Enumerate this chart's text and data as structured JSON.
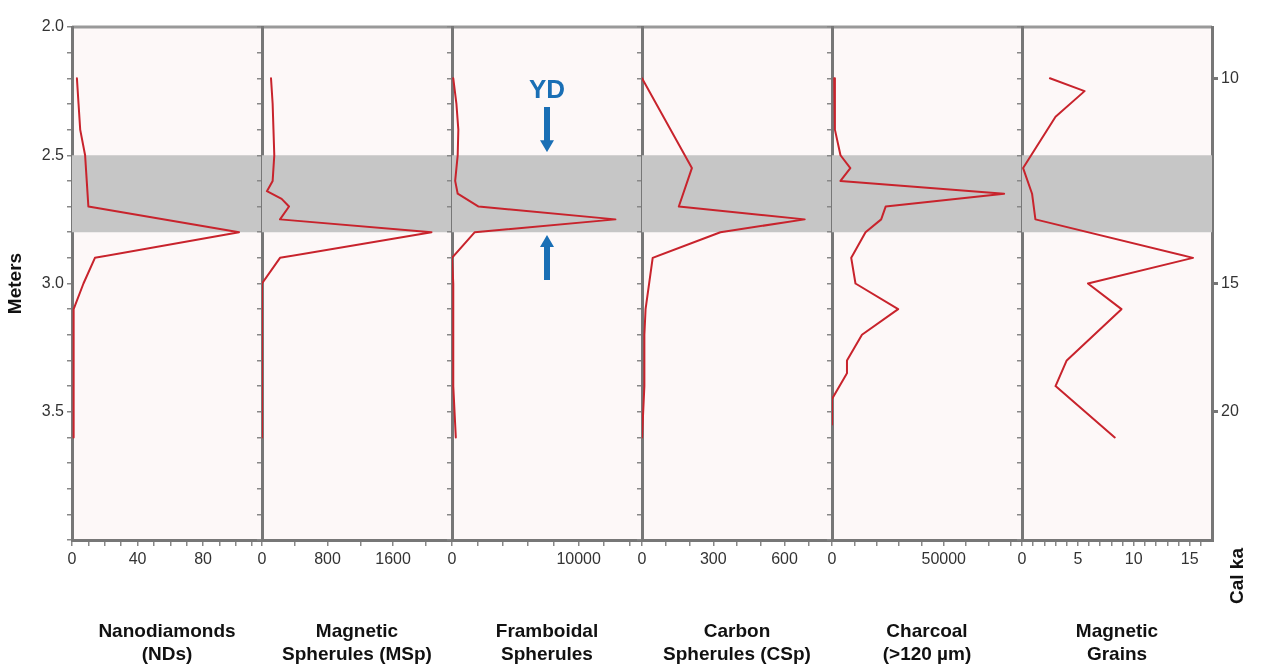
{
  "chart_data": [
    {
      "type": "line",
      "orientation": "horizontal",
      "xlabel": "Nanodiamonds (NDs)",
      "ylabel": "Meters",
      "x": [
        2.2,
        2.3,
        2.4,
        2.5,
        2.6,
        2.7,
        2.8,
        2.9,
        3.0,
        3.1,
        3.2,
        3.3,
        3.4,
        3.5,
        3.6
      ],
      "series": [
        {
          "color": "#c8232c",
          "values": [
            3,
            4,
            5,
            8,
            9,
            10,
            102,
            14,
            7,
            1,
            1,
            1,
            1,
            1,
            1
          ]
        }
      ],
      "xlim": [
        0,
        116
      ],
      "xticks": [
        0,
        {
          "value": 10,
          "label": null
        },
        {
          "value": 20,
          "label": null
        },
        {
          "value": 30,
          "label": null
        },
        40,
        {
          "value": 50,
          "label": null
        },
        {
          "value": 60,
          "label": null
        },
        {
          "value": 70,
          "label": null
        },
        80,
        {
          "value": 90,
          "label": null
        },
        {
          "value": 100,
          "label": null
        },
        {
          "value": 110,
          "label": null
        }
      ],
      "ylim": [
        4.0,
        2.0
      ],
      "yticks": [
        {
          "value": 2.0,
          "label": "2.0"
        },
        {
          "value": 2.1,
          "label": null
        },
        {
          "value": 2.2,
          "label": null
        },
        {
          "value": 2.3,
          "label": null
        },
        {
          "value": 2.4,
          "label": null
        },
        2.5,
        {
          "value": 2.6,
          "label": null
        },
        {
          "value": 2.7,
          "label": null
        },
        {
          "value": 2.8,
          "label": null
        },
        {
          "value": 2.9,
          "label": null
        },
        {
          "value": 3.0,
          "label": "3.0"
        },
        {
          "value": 3.1,
          "label": null
        },
        {
          "value": 3.2,
          "label": null
        },
        {
          "value": 3.3,
          "label": null
        },
        {
          "value": 3.4,
          "label": null
        },
        3.5,
        {
          "value": 3.6,
          "label": null
        },
        {
          "value": 3.7,
          "label": null
        },
        {
          "value": 3.8,
          "label": null
        },
        {
          "value": 3.9,
          "label": null
        },
        {
          "value": 4.0,
          "label": null
        }
      ],
      "bands": [
        {
          "axis": "y",
          "from": 2.5,
          "to": 2.8,
          "color": "#c6c6c6"
        }
      ]
    },
    {
      "type": "line",
      "orientation": "horizontal",
      "xlabel": "Magnetic Spherules (MSp)",
      "tick_labels": "x",
      "x": [
        2.2,
        2.3,
        2.4,
        2.5,
        2.6,
        2.64,
        2.67,
        2.7,
        2.75,
        2.8,
        2.9,
        3.0,
        3.1,
        3.2,
        3.3,
        3.4,
        3.5,
        3.6
      ],
      "series": [
        {
          "color": "#c8232c",
          "values": [
            110,
            130,
            140,
            150,
            130,
            60,
            240,
            330,
            220,
            2070,
            220,
            0,
            0,
            0,
            0,
            0,
            0,
            0
          ]
        }
      ],
      "xlim": [
        0,
        2320
      ],
      "xticks": [
        0,
        {
          "value": 400,
          "label": null
        },
        800,
        {
          "value": 1200,
          "label": null
        },
        1600,
        {
          "value": 2000,
          "label": null
        }
      ],
      "ylim": [
        4.0,
        2.0
      ],
      "yticks": [
        {
          "value": 2.0,
          "label": null
        },
        {
          "value": 2.1,
          "label": null
        },
        {
          "value": 2.2,
          "label": null
        },
        {
          "value": 2.3,
          "label": null
        },
        {
          "value": 2.4,
          "label": null
        },
        {
          "value": 2.5,
          "label": null
        },
        {
          "value": 2.6,
          "label": null
        },
        {
          "value": 2.7,
          "label": null
        },
        {
          "value": 2.8,
          "label": null
        },
        {
          "value": 2.9,
          "label": null
        },
        {
          "value": 3.0,
          "label": null
        },
        {
          "value": 3.1,
          "label": null
        },
        {
          "value": 3.2,
          "label": null
        },
        {
          "value": 3.3,
          "label": null
        },
        {
          "value": 3.4,
          "label": null
        },
        {
          "value": 3.5,
          "label": null
        },
        {
          "value": 3.6,
          "label": null
        },
        {
          "value": 3.7,
          "label": null
        },
        {
          "value": 3.8,
          "label": null
        },
        {
          "value": 3.9,
          "label": null
        },
        {
          "value": 4.0,
          "label": null
        }
      ],
      "bands": [
        {
          "axis": "y",
          "from": 2.5,
          "to": 2.8,
          "color": "#c6c6c6"
        }
      ]
    },
    {
      "type": "line",
      "orientation": "horizontal",
      "xlabel": "Framboidal Spherules",
      "tick_labels": "x",
      "x": [
        2.2,
        2.3,
        2.4,
        2.5,
        2.6,
        2.65,
        2.7,
        2.75,
        2.8,
        2.9,
        3.0,
        3.1,
        3.2,
        3.3,
        3.4,
        3.5,
        3.6
      ],
      "series": [
        {
          "color": "#c8232c",
          "values": [
            100,
            350,
            500,
            450,
            250,
            450,
            2100,
            12900,
            1800,
            0,
            100,
            100,
            100,
            100,
            100,
            200,
            300
          ]
        }
      ],
      "xlim": [
        0,
        15000
      ],
      "xticks": [
        0,
        {
          "value": 2000,
          "label": null
        },
        {
          "value": 4000,
          "label": null
        },
        {
          "value": 6000,
          "label": null
        },
        {
          "value": 8000,
          "label": null
        },
        10000,
        {
          "value": 12000,
          "label": null
        },
        {
          "value": 14000,
          "label": null
        }
      ],
      "ylim": [
        4.0,
        2.0
      ],
      "yticks": [
        {
          "value": 2.0,
          "label": null
        },
        {
          "value": 2.1,
          "label": null
        },
        {
          "value": 2.2,
          "label": null
        },
        {
          "value": 2.3,
          "label": null
        },
        {
          "value": 2.4,
          "label": null
        },
        {
          "value": 2.5,
          "label": null
        },
        {
          "value": 2.6,
          "label": null
        },
        {
          "value": 2.7,
          "label": null
        },
        {
          "value": 2.8,
          "label": null
        },
        {
          "value": 2.9,
          "label": null
        },
        {
          "value": 3.0,
          "label": null
        },
        {
          "value": 3.1,
          "label": null
        },
        {
          "value": 3.2,
          "label": null
        },
        {
          "value": 3.3,
          "label": null
        },
        {
          "value": 3.4,
          "label": null
        },
        {
          "value": 3.5,
          "label": null
        },
        {
          "value": 3.6,
          "label": null
        },
        {
          "value": 3.7,
          "label": null
        },
        {
          "value": 3.8,
          "label": null
        },
        {
          "value": 3.9,
          "label": null
        },
        {
          "value": 4.0,
          "label": null
        }
      ],
      "bands": [
        {
          "axis": "y",
          "from": 2.5,
          "to": 2.8,
          "color": "#c6c6c6"
        }
      ],
      "annotations": [
        "YD"
      ]
    },
    {
      "type": "line",
      "orientation": "horizontal",
      "xlabel": "Carbon Spherules (CSp)",
      "tick_labels": "x",
      "x": [
        2.2,
        2.55,
        2.7,
        2.75,
        2.8,
        2.9,
        3.1,
        3.2,
        3.3,
        3.4,
        3.5,
        3.6
      ],
      "series": [
        {
          "color": "#c8232c",
          "values": [
            0,
            210,
            155,
            685,
            330,
            45,
            15,
            10,
            10,
            10,
            5,
            0
          ]
        }
      ],
      "xlim": [
        0,
        800
      ],
      "xticks": [
        0,
        {
          "value": 100,
          "label": null
        },
        {
          "value": 200,
          "label": null
        },
        300,
        {
          "value": 400,
          "label": null
        },
        {
          "value": 500,
          "label": null
        },
        600,
        {
          "value": 700,
          "label": null
        }
      ],
      "ylim": [
        4.0,
        2.0
      ],
      "yticks": [
        {
          "value": 2.0,
          "label": null
        },
        {
          "value": 2.1,
          "label": null
        },
        {
          "value": 2.2,
          "label": null
        },
        {
          "value": 2.3,
          "label": null
        },
        {
          "value": 2.4,
          "label": null
        },
        {
          "value": 2.5,
          "label": null
        },
        {
          "value": 2.6,
          "label": null
        },
        {
          "value": 2.7,
          "label": null
        },
        {
          "value": 2.8,
          "label": null
        },
        {
          "value": 2.9,
          "label": null
        },
        {
          "value": 3.0,
          "label": null
        },
        {
          "value": 3.1,
          "label": null
        },
        {
          "value": 3.2,
          "label": null
        },
        {
          "value": 3.3,
          "label": null
        },
        {
          "value": 3.4,
          "label": null
        },
        {
          "value": 3.5,
          "label": null
        },
        {
          "value": 3.6,
          "label": null
        },
        {
          "value": 3.7,
          "label": null
        },
        {
          "value": 3.8,
          "label": null
        },
        {
          "value": 3.9,
          "label": null
        },
        {
          "value": 4.0,
          "label": null
        }
      ],
      "bands": [
        {
          "axis": "y",
          "from": 2.5,
          "to": 2.8,
          "color": "#c6c6c6"
        }
      ]
    },
    {
      "type": "line",
      "orientation": "horizontal",
      "xlabel": "Charcoal (>120 µm)",
      "tick_labels": "x",
      "x": [
        2.2,
        2.4,
        2.5,
        2.55,
        2.6,
        2.65,
        2.7,
        2.75,
        2.8,
        2.9,
        3.0,
        3.1,
        3.2,
        3.3,
        3.35,
        3.45,
        3.55
      ],
      "series": [
        {
          "color": "#c8232c",
          "values": [
            1000,
            1300,
            3800,
            8200,
            3800,
            77000,
            24000,
            22000,
            15000,
            8600,
            10500,
            29600,
            13400,
            6700,
            6700,
            0,
            0
          ]
        }
      ],
      "xlim": [
        0,
        85000
      ],
      "xticks": [
        0,
        {
          "value": 10000,
          "label": null
        },
        {
          "value": 20000,
          "label": null
        },
        {
          "value": 30000,
          "label": null
        },
        {
          "value": 40000,
          "label": null
        },
        50000,
        {
          "value": 60000,
          "label": null
        },
        {
          "value": 70000,
          "label": null
        },
        {
          "value": 80000,
          "label": null
        }
      ],
      "ylim": [
        4.0,
        2.0
      ],
      "yticks": [
        {
          "value": 2.0,
          "label": null
        },
        {
          "value": 2.1,
          "label": null
        },
        {
          "value": 2.2,
          "label": null
        },
        {
          "value": 2.3,
          "label": null
        },
        {
          "value": 2.4,
          "label": null
        },
        {
          "value": 2.5,
          "label": null
        },
        {
          "value": 2.6,
          "label": null
        },
        {
          "value": 2.7,
          "label": null
        },
        {
          "value": 2.8,
          "label": null
        },
        {
          "value": 2.9,
          "label": null
        },
        {
          "value": 3.0,
          "label": null
        },
        {
          "value": 3.1,
          "label": null
        },
        {
          "value": 3.2,
          "label": null
        },
        {
          "value": 3.3,
          "label": null
        },
        {
          "value": 3.4,
          "label": null
        },
        {
          "value": 3.5,
          "label": null
        },
        {
          "value": 3.6,
          "label": null
        },
        {
          "value": 3.7,
          "label": null
        },
        {
          "value": 3.8,
          "label": null
        },
        {
          "value": 3.9,
          "label": null
        },
        {
          "value": 4.0,
          "label": null
        }
      ],
      "bands": [
        {
          "axis": "y",
          "from": 2.5,
          "to": 2.8,
          "color": "#c6c6c6"
        }
      ]
    },
    {
      "type": "line",
      "orientation": "horizontal",
      "xlabel": "Magnetic Grains",
      "y2label": "Cal ka",
      "tick_labels": "x",
      "x": [
        2.2,
        2.25,
        2.35,
        2.55,
        2.65,
        2.75,
        2.9,
        3.0,
        3.1,
        3.3,
        3.4,
        3.6
      ],
      "series": [
        {
          "color": "#c8232c",
          "values": [
            2.5,
            5.6,
            3,
            0.1,
            0.9,
            1.2,
            15.3,
            5.9,
            8.9,
            4,
            3,
            8.3
          ]
        }
      ],
      "xlim": [
        0,
        17
      ],
      "xticks": [
        0,
        {
          "value": 1,
          "label": null
        },
        {
          "value": 2,
          "label": null
        },
        {
          "value": 3,
          "label": null
        },
        {
          "value": 4,
          "label": null
        },
        5,
        {
          "value": 6,
          "label": null
        },
        {
          "value": 7,
          "label": null
        },
        {
          "value": 8,
          "label": null
        },
        {
          "value": 9,
          "label": null
        },
        10,
        {
          "value": 11,
          "label": null
        },
        {
          "value": 12,
          "label": null
        },
        {
          "value": 13,
          "label": null
        },
        {
          "value": 14,
          "label": null
        },
        15,
        {
          "value": 16,
          "label": null
        }
      ],
      "ylim": [
        4.0,
        2.0
      ],
      "yticks": [
        {
          "value": 2.0,
          "label": null
        },
        {
          "value": 2.1,
          "label": null
        },
        {
          "value": 2.2,
          "label": null
        },
        {
          "value": 2.3,
          "label": null
        },
        {
          "value": 2.4,
          "label": null
        },
        {
          "value": 2.5,
          "label": null
        },
        {
          "value": 2.6,
          "label": null
        },
        {
          "value": 2.7,
          "label": null
        },
        {
          "value": 2.8,
          "label": null
        },
        {
          "value": 2.9,
          "label": null
        },
        {
          "value": 3.0,
          "label": null
        },
        {
          "value": 3.1,
          "label": null
        },
        {
          "value": 3.2,
          "label": null
        },
        {
          "value": 3.3,
          "label": null
        },
        {
          "value": 3.4,
          "label": null
        },
        {
          "value": 3.5,
          "label": null
        },
        {
          "value": 3.6,
          "label": null
        },
        {
          "value": 3.7,
          "label": null
        },
        {
          "value": 3.8,
          "label": null
        },
        {
          "value": 3.9,
          "label": null
        },
        {
          "value": 4.0,
          "label": null
        }
      ],
      "y2_categories": [
        null,
        null,
        "10",
        null,
        null,
        null,
        null,
        null,
        null,
        null,
        "15",
        null,
        null,
        null,
        null,
        "20",
        null,
        null,
        null,
        null,
        null
      ],
      "bands": [
        {
          "axis": "y",
          "from": 2.5,
          "to": 2.8,
          "color": "#c6c6c6"
        }
      ]
    }
  ]
}
